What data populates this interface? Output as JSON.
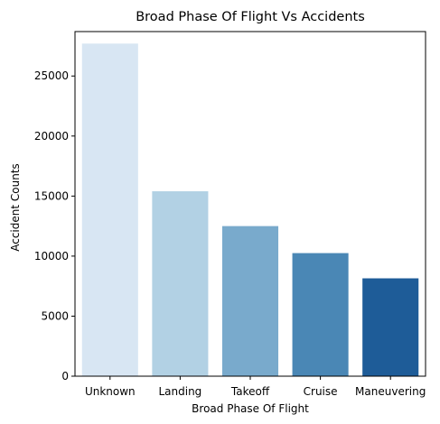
{
  "chart_data": {
    "type": "bar",
    "title": "Broad Phase Of Flight Vs Accidents",
    "xlabel": "Broad Phase Of Flight",
    "ylabel": "Accident Counts",
    "categories": [
      "Unknown",
      "Landing",
      "Takeoff",
      "Cruise",
      "Maneuvering"
    ],
    "values": [
      27700,
      15400,
      12500,
      10250,
      8150
    ],
    "colors": [
      "#d8e6f3",
      "#b2d1e4",
      "#79aacc",
      "#4a87b5",
      "#1e5c98"
    ],
    "ylim": [
      0,
      28700
    ],
    "yticks": [
      0,
      5000,
      10000,
      15000,
      20000,
      25000
    ],
    "grid": false,
    "legend": "none"
  }
}
